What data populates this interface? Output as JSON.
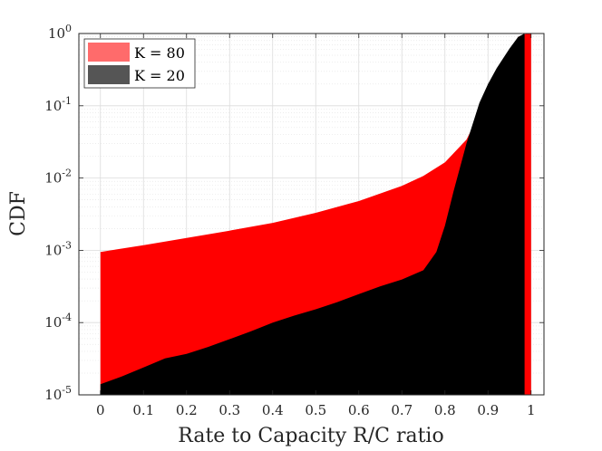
{
  "chart_data": {
    "type": "area",
    "title": "",
    "xlabel": "Rate to Capacity R/C ratio",
    "ylabel": "CDF",
    "xlim": [
      -0.05,
      1.03
    ],
    "ylim": [
      1e-05,
      1
    ],
    "yscale": "log",
    "grid": true,
    "legend_position": "top-left",
    "x_ticks": [
      0,
      0.1,
      0.2,
      0.3,
      0.4,
      0.5,
      0.6,
      0.7,
      0.8,
      0.9,
      1
    ],
    "x_tick_labels": [
      "0",
      "0.1",
      "0.2",
      "0.3",
      "0.4",
      "0.5",
      "0.6",
      "0.7",
      "0.8",
      "0.9",
      "1"
    ],
    "y_ticks": [
      1e-05,
      0.0001,
      0.001,
      0.01,
      0.1,
      1
    ],
    "y_tick_labels": [
      {
        "base": "10",
        "exp": "-5"
      },
      {
        "base": "10",
        "exp": "-4"
      },
      {
        "base": "10",
        "exp": "-3"
      },
      {
        "base": "10",
        "exp": "-2"
      },
      {
        "base": "10",
        "exp": "-1"
      },
      {
        "base": "10",
        "exp": "0"
      }
    ],
    "series": [
      {
        "name": "K = 80",
        "color": "#ff0000",
        "legend_color": "#ff6b6b",
        "x": [
          0,
          0.1,
          0.2,
          0.3,
          0.4,
          0.5,
          0.6,
          0.7,
          0.75,
          0.8,
          0.85,
          0.9,
          0.92,
          0.95,
          0.97,
          0.99,
          1.0
        ],
        "y": [
          0.00095,
          0.00118,
          0.00148,
          0.00187,
          0.0024,
          0.0033,
          0.0048,
          0.0078,
          0.0107,
          0.0165,
          0.034,
          0.135,
          0.24,
          0.55,
          0.9,
          1.0,
          1.0
        ]
      },
      {
        "name": "K = 20",
        "color": "#000000",
        "legend_color": "#555555",
        "x": [
          0,
          0.05,
          0.1,
          0.15,
          0.2,
          0.25,
          0.3,
          0.35,
          0.4,
          0.45,
          0.5,
          0.55,
          0.6,
          0.65,
          0.7,
          0.75,
          0.78,
          0.8,
          0.82,
          0.85,
          0.88,
          0.9,
          0.92,
          0.95,
          0.97,
          0.985
        ],
        "y": [
          1.4e-05,
          1.8e-05,
          2.4e-05,
          3.2e-05,
          3.7e-05,
          4.6e-05,
          5.9e-05,
          7.6e-05,
          0.0001,
          0.000125,
          0.000153,
          0.000192,
          0.000248,
          0.000318,
          0.000395,
          0.00053,
          0.00095,
          0.0022,
          0.0065,
          0.03,
          0.11,
          0.2,
          0.33,
          0.62,
          0.9,
          1.0
        ]
      }
    ]
  }
}
